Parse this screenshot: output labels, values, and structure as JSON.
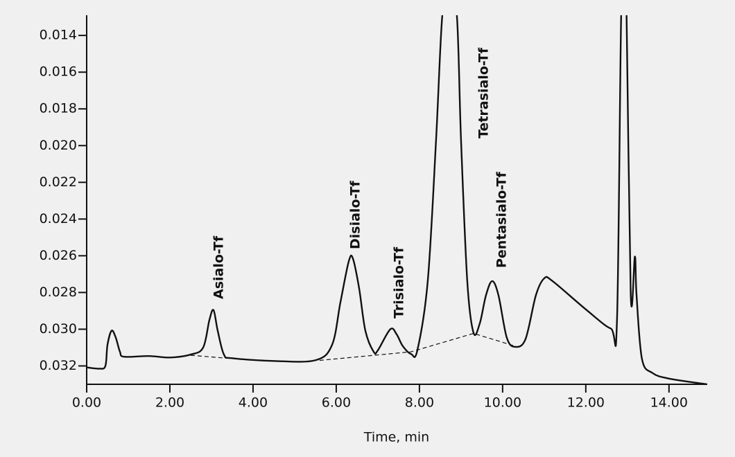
{
  "chart_data": {
    "type": "line",
    "x_label": "Time, min",
    "xlim": [
      0,
      14.92
    ],
    "xticks": [
      {
        "value": 0,
        "label": "0.00"
      },
      {
        "value": 2,
        "label": "2.00"
      },
      {
        "value": 4,
        "label": "4.00"
      },
      {
        "value": 6,
        "label": "6.00"
      },
      {
        "value": 8,
        "label": "8.00"
      },
      {
        "value": 10,
        "label": "10.00"
      },
      {
        "value": 12,
        "label": "12.00"
      },
      {
        "value": 14,
        "label": "14.00"
      }
    ],
    "ylim": [
      0.033,
      0.0129
    ],
    "yticks": [
      0.014,
      0.016,
      0.018,
      {
        "value": 0.02,
        "label": "0.020"
      },
      0.022,
      0.024,
      0.026,
      0.028,
      {
        "value": 0.03,
        "label": "0.030"
      },
      0.032
    ],
    "series": [
      {
        "color": "#111111",
        "dashed": false,
        "x": [
          0,
          0.3,
          0.45,
          0.5,
          0.6,
          0.7,
          0.8,
          0.9,
          1.5,
          2.0,
          2.5,
          2.8,
          2.95,
          3.05,
          3.15,
          3.3,
          3.5,
          4.5,
          5.5,
          5.9,
          6.1,
          6.3,
          6.4,
          6.55,
          6.7,
          6.9,
          7.0,
          7.3,
          7.45,
          7.6,
          7.8,
          7.95,
          8.2,
          8.4,
          8.55,
          8.72,
          8.9,
          9.0,
          9.15,
          9.3,
          9.45,
          9.6,
          9.75,
          9.9,
          10.1,
          10.3,
          10.55,
          10.8,
          11.0,
          11.2,
          12.0,
          12.6,
          12.75,
          12.85,
          12.92,
          12.98,
          13.08,
          13.18,
          13.22,
          13.35,
          13.6,
          14.0,
          14.92
        ],
        "values": [
          0.03208,
          0.03215,
          0.032,
          0.03085,
          0.03008,
          0.03046,
          0.03123,
          0.0315,
          0.03146,
          0.03154,
          0.03138,
          0.031,
          0.0295,
          0.02896,
          0.03008,
          0.03138,
          0.03158,
          0.03173,
          0.03169,
          0.03085,
          0.02854,
          0.02631,
          0.02615,
          0.02777,
          0.03008,
          0.03123,
          0.03115,
          0.03,
          0.03027,
          0.03092,
          0.03135,
          0.03115,
          0.02738,
          0.01969,
          0.0129,
          0.011,
          0.0129,
          0.01969,
          0.02738,
          0.03019,
          0.02969,
          0.02815,
          0.02738,
          0.02815,
          0.03046,
          0.03096,
          0.03054,
          0.02815,
          0.02723,
          0.02738,
          0.02892,
          0.02996,
          0.0295,
          0.0129,
          0.011,
          0.0129,
          0.02815,
          0.02604,
          0.02815,
          0.03162,
          0.03238,
          0.03269,
          0.033
        ]
      },
      {
        "color": "#111111",
        "dashed": true,
        "x": [
          2.5,
          3.6,
          null,
          5.6,
          7.8,
          9.3,
          10.3
        ],
        "values": [
          0.03142,
          0.03162,
          null,
          0.0317,
          0.03123,
          0.03023,
          0.03092
        ]
      }
    ],
    "annotations": [
      "Asialo-Tf",
      "Disialo-Tf",
      "Trisialo-Tf",
      "Tetrasialo-Tf",
      "Pentasialo-Tf"
    ]
  }
}
